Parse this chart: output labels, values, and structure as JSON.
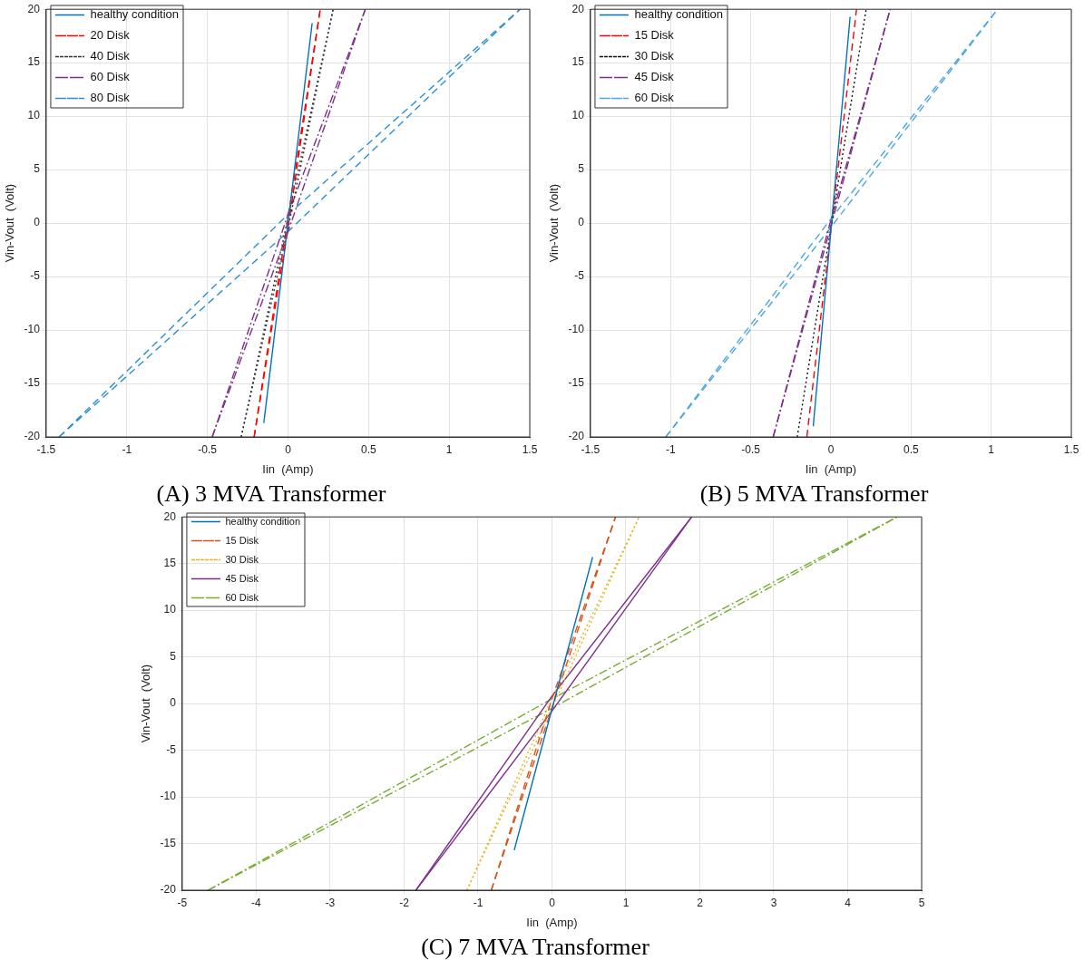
{
  "chart_data": [
    {
      "type": "line",
      "xlabel": "Iin  (Amp)",
      "ylabel": "Vin-Vout  (Volt)",
      "xlim": [
        -1.5,
        1.5
      ],
      "xticks": [
        -1.5,
        -1,
        -0.5,
        0,
        0.5,
        1,
        1.5
      ],
      "ylim": [
        -20,
        20
      ],
      "yticks": [
        -20,
        -15,
        -10,
        -5,
        0,
        5,
        10,
        15,
        20
      ],
      "grid": true,
      "legend": "top left",
      "marker": "none",
      "annotations": [
        "(A) 3 MVA Transformer"
      ],
      "series": [
        {
          "name": "healthy condition",
          "color": "#0072bd",
          "line_style": "solid",
          "x": [
            -0.15,
            0.15
          ],
          "values": [
            -18.7,
            18.7
          ]
        },
        {
          "name": "20 Disk",
          "color": "#ff0000",
          "line_style": "dashed",
          "x": [
            -0.21,
            0,
            0.2
          ],
          "values": [
            -20,
            0.5,
            20
          ]
        },
        {
          "color": "#ff0000",
          "line_style": "dashed",
          "x": [
            -0.21,
            0,
            0.2
          ],
          "values": [
            -20,
            -0.5,
            20
          ]
        },
        {
          "name": "40 Disk",
          "color": "#333333",
          "line_style": "dotted",
          "x": [
            -0.29,
            0,
            0.28
          ],
          "values": [
            -20,
            0.5,
            20
          ]
        },
        {
          "color": "#333333",
          "line_style": "dotted",
          "x": [
            -0.29,
            0,
            0.28
          ],
          "values": [
            -20,
            -0.5,
            20
          ]
        },
        {
          "name": "60 Disk",
          "color": "#7e2f8e",
          "line_style": "dashdot",
          "x": [
            -0.47,
            0,
            0.48
          ],
          "values": [
            -20,
            0.8,
            20
          ]
        },
        {
          "color": "#7e2f8e",
          "line_style": "dashdot",
          "x": [
            -0.47,
            0,
            0.48
          ],
          "values": [
            -20,
            -0.8,
            20
          ]
        },
        {
          "name": "80 Disk",
          "color": "#2b8fd6",
          "line_style": "dashed",
          "x": [
            -1.42,
            0,
            1.44
          ],
          "values": [
            -20,
            0.8,
            20
          ]
        },
        {
          "color": "#2b8fd6",
          "line_style": "dashed",
          "x": [
            -1.42,
            0,
            1.44
          ],
          "values": [
            -20,
            -0.8,
            20
          ]
        }
      ]
    },
    {
      "type": "line",
      "xlabel": "Iin  (Amp)",
      "ylabel": "Vin-Vout  (Volt)",
      "xlim": [
        -1.5,
        1.5
      ],
      "xticks": [
        -1.5,
        -1,
        -0.5,
        0,
        0.5,
        1,
        1.5
      ],
      "ylim": [
        -20,
        20
      ],
      "yticks": [
        -20,
        -15,
        -10,
        -5,
        0,
        5,
        10,
        15,
        20
      ],
      "grid": true,
      "legend": "top left",
      "marker": "none",
      "annotations": [
        "(B) 5 MVA Transformer"
      ],
      "series": [
        {
          "name": "healthy condition",
          "color": "#0072bd",
          "line_style": "solid",
          "x": [
            -0.11,
            0.12
          ],
          "values": [
            -19,
            19.3
          ]
        },
        {
          "name": "15 Disk",
          "color": "#ff0000",
          "line_style": "dashed",
          "x": [
            -0.15,
            0.16
          ],
          "values": [
            -20,
            20
          ]
        },
        {
          "name": "30 Disk",
          "color": "#111111",
          "line_style": "dotted",
          "x": [
            -0.21,
            0.22
          ],
          "values": [
            -20,
            20
          ]
        },
        {
          "name": "45 Disk",
          "color": "#7e2f8e",
          "line_style": "dashdot",
          "x": [
            -0.36,
            0,
            0.37
          ],
          "values": [
            -20,
            0.3,
            20
          ]
        },
        {
          "color": "#7e2f8e",
          "line_style": "dashdot",
          "x": [
            -0.36,
            0,
            0.37
          ],
          "values": [
            -20,
            -0.3,
            20
          ]
        },
        {
          "name": "60 Disk",
          "color": "#4da6e0",
          "line_style": "dashed",
          "x": [
            -1.03,
            0,
            1.04
          ],
          "values": [
            -20,
            0.4,
            20
          ]
        },
        {
          "color": "#4da6e0",
          "line_style": "dashed",
          "x": [
            -1.03,
            0,
            1.04
          ],
          "values": [
            -20,
            -0.4,
            20
          ]
        }
      ]
    },
    {
      "type": "line",
      "xlabel": "Iin  (Amp)",
      "ylabel": "Vin-Vout  (Volt)",
      "xlim": [
        -5,
        5
      ],
      "xticks": [
        -5,
        -4,
        -3,
        -2,
        -1,
        0,
        1,
        2,
        3,
        4,
        5
      ],
      "ylim": [
        -20,
        20
      ],
      "yticks": [
        -20,
        -15,
        -10,
        -5,
        0,
        5,
        10,
        15,
        20
      ],
      "grid": true,
      "legend": "top left",
      "marker": "none",
      "annotations": [
        "(C) 7 MVA Transformer"
      ],
      "series": [
        {
          "name": "healthy condition",
          "color": "#0072bd",
          "line_style": "solid",
          "x": [
            -0.51,
            0.55
          ],
          "values": [
            -15.7,
            15.7
          ]
        },
        {
          "name": "15 Disk",
          "color": "#d95319",
          "line_style": "dashed",
          "x": [
            -0.82,
            0,
            0.86
          ],
          "values": [
            -20,
            0.5,
            20
          ]
        },
        {
          "color": "#d95319",
          "line_style": "dashed",
          "x": [
            -0.82,
            0,
            0.86
          ],
          "values": [
            -20,
            -0.5,
            20
          ]
        },
        {
          "name": "30 Disk",
          "color": "#edb120",
          "line_style": "dotted",
          "x": [
            -1.15,
            0,
            1.18
          ],
          "values": [
            -20,
            0.5,
            20
          ]
        },
        {
          "color": "#edb120",
          "line_style": "dotted",
          "x": [
            -1.15,
            0,
            1.18
          ],
          "values": [
            -20,
            -0.5,
            20
          ]
        },
        {
          "name": "45 Disk",
          "color": "#7e2f8e",
          "line_style": "solid",
          "x": [
            -1.84,
            0,
            1.89
          ],
          "values": [
            -20,
            0.8,
            20
          ]
        },
        {
          "color": "#7e2f8e",
          "line_style": "solid",
          "x": [
            -1.84,
            0,
            1.89
          ],
          "values": [
            -20,
            -0.8,
            20
          ]
        },
        {
          "name": "60 Disk",
          "color": "#77ac30",
          "line_style": "dashdot",
          "x": [
            -4.65,
            0,
            4.67
          ],
          "values": [
            -20,
            0.5,
            20
          ]
        },
        {
          "color": "#77ac30",
          "line_style": "dashdot",
          "x": [
            -4.65,
            0,
            4.67
          ],
          "values": [
            -20,
            -0.5,
            20
          ]
        }
      ]
    }
  ]
}
